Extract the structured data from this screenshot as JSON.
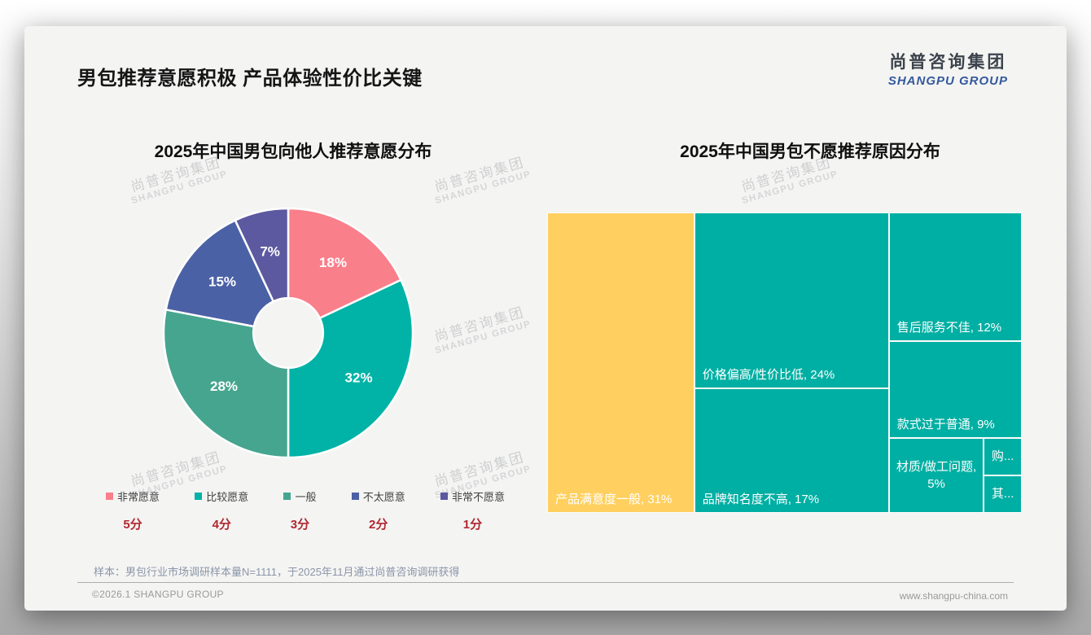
{
  "page": {
    "title": "男包推荐意愿积极 产品体验性价比关键",
    "logo": {
      "cn": "尚普咨询集团",
      "en": "SHANGPU GROUP"
    },
    "watermark": {
      "cn": "尚普咨询集团",
      "en": "SHANGPU GROUP"
    },
    "note": "样本：男包行业市场调研样本量N=1111，于2025年11月通过尚普咨询调研获得",
    "footer_left": "©2026.1 SHANGPU GROUP",
    "footer_right": "www.shangpu-china.com"
  },
  "chart_data": [
    {
      "type": "pie",
      "title": "2025年中国男包向他人推荐意愿分布",
      "donut": true,
      "inner_radius_ratio": 0.28,
      "start_angle_deg": 0,
      "data_label_format": "percent",
      "legend_position": "bottom",
      "slices": [
        {
          "label": "非常愿意",
          "score": "5分",
          "value": 18,
          "color": "#f97f8b"
        },
        {
          "label": "比较愿意",
          "score": "4分",
          "value": 32,
          "color": "#00b3a6"
        },
        {
          "label": "一般",
          "score": "3分",
          "value": 28,
          "color": "#46a58e"
        },
        {
          "label": "不太愿意",
          "score": "2分",
          "value": 15,
          "color": "#4b61a6"
        },
        {
          "label": "非常不愿意",
          "score": "1分",
          "value": 7,
          "color": "#5c59a0"
        }
      ]
    },
    {
      "type": "treemap",
      "title": "2025年中国男包不愿推荐原因分布",
      "cells": [
        {
          "label": "产品满意度一般",
          "display": "产品满意度一般, 31%",
          "value": 31,
          "color": "#ffd05f"
        },
        {
          "label": "价格偏高/性价比低",
          "display": "价格偏高/性价比低, 24%",
          "value": 24,
          "color": "#00afa3"
        },
        {
          "label": "品牌知名度不高",
          "display": "品牌知名度不高, 17%",
          "value": 17,
          "color": "#00afa3"
        },
        {
          "label": "售后服务不佳",
          "display": "售后服务不佳, 12%",
          "value": 12,
          "color": "#00afa3"
        },
        {
          "label": "款式过于普通",
          "display": "款式过于普通, 9%",
          "value": 9,
          "color": "#00afa3"
        },
        {
          "label": "材质/做工问题",
          "display": "材质/做工问题, 5%",
          "value": 5,
          "color": "#00afa3"
        },
        {
          "label": "购...",
          "display": "购...",
          "value": 1,
          "color": "#00afa3",
          "truncated": true
        },
        {
          "label": "其...",
          "display": "其...",
          "value": 1,
          "color": "#00afa3",
          "truncated": true
        }
      ]
    }
  ]
}
